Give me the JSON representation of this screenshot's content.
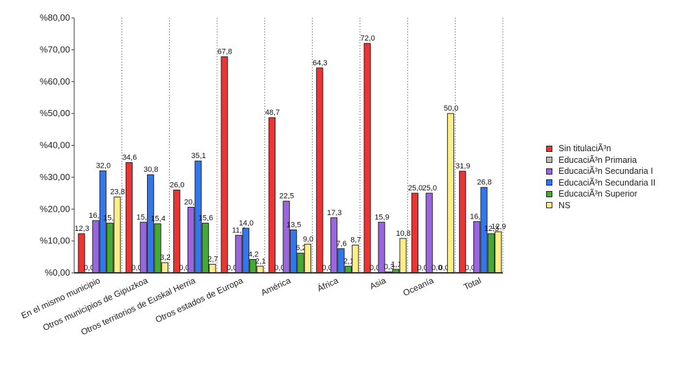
{
  "chart_data": {
    "type": "bar",
    "categories": [
      "En el mismo municipio",
      "Otros municipios de Gipuzkoa",
      "Otros territorios de Euskal Herria",
      "Otros estados de Europa",
      "América",
      "África",
      "Asia",
      "Oceanía",
      "Total"
    ],
    "series": [
      {
        "name": "Sin titulaciÃ³n",
        "color": "#ee3333",
        "values": [
          12.3,
          34.6,
          26.0,
          67.8,
          48.7,
          64.3,
          72.0,
          25.0,
          31.9
        ],
        "labels": [
          "12,3",
          "34,6",
          "26,0",
          "67,8",
          "48,7",
          "64,3",
          "72,0",
          "25,0",
          "31,9"
        ]
      },
      {
        "name": "EducaciÃ³n Primaria",
        "color": "#bbbbbb",
        "values": [
          0.0,
          0.0,
          0.0,
          0.0,
          0.0,
          0.0,
          0.0,
          0.0,
          0.0
        ],
        "labels": [
          "0,0",
          "0,0",
          "0,0",
          "0,0",
          "0,0",
          "0,0",
          "0,0",
          "0,0",
          "0,0"
        ]
      },
      {
        "name": "EducaciÃ³n Secundaria I",
        "color": "#9966dd",
        "values": [
          16.4,
          15.9,
          20.6,
          11.8,
          22.5,
          17.3,
          15.9,
          25.0,
          16.1
        ],
        "labels": [
          "16,4",
          "15,9",
          "20,6",
          "11,8",
          "22,5",
          "17,3",
          "15,9",
          "25,0",
          "16,1"
        ]
      },
      {
        "name": "EducaciÃ³n Secundaria II",
        "color": "#3377ee",
        "values": [
          32.0,
          30.8,
          35.1,
          14.0,
          13.5,
          7.6,
          0.3,
          0.0,
          26.8
        ],
        "labels": [
          "32,0",
          "30,8",
          "35,1",
          "14,0",
          "13,5",
          "7,6",
          "0,3",
          "0,0",
          "26,8"
        ]
      },
      {
        "name": "EducaciÃ³n Superior",
        "color": "#44aa33",
        "values": [
          15.6,
          15.4,
          15.6,
          4.2,
          6.2,
          2.1,
          1.1,
          0.0,
          12.3
        ],
        "labels": [
          "15,6",
          "15,4",
          "15,6",
          "4,2",
          "6,2",
          "2,1",
          "1,1",
          "0,0",
          "12,3"
        ]
      },
      {
        "name": "NS",
        "color": "#ffee88",
        "values": [
          23.8,
          3.2,
          2.7,
          2.1,
          9.0,
          8.7,
          10.8,
          50.0,
          12.9
        ],
        "labels": [
          "23,8",
          "3,2",
          "2,7",
          "2,1",
          "9,0",
          "8,7",
          "10,8",
          "50,0",
          "12,9"
        ]
      }
    ],
    "yticks": [
      "%0,00",
      "%10,00",
      "%20,00",
      "%30,00",
      "%40,00",
      "%50,00",
      "%60,00",
      "%70,00",
      "%80,00"
    ],
    "ylim": [
      0,
      80
    ],
    "grid": "vertical dotted",
    "legend_position": "right"
  }
}
